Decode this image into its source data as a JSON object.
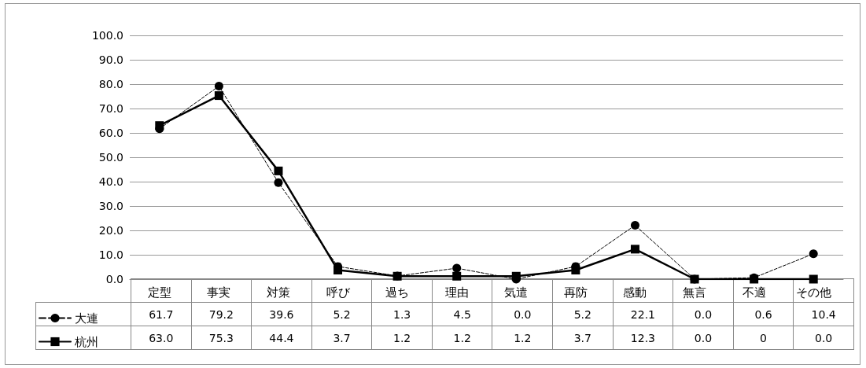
{
  "chart_data": {
    "type": "line",
    "categories": [
      "定型",
      "事実",
      "対策",
      "呼び",
      "過ち",
      "理由",
      "気遣",
      "再防",
      "感動",
      "無言",
      "不適",
      "その他"
    ],
    "series": [
      {
        "name": "大連",
        "color": "#000000",
        "marker": "circle",
        "line_style": "dashed",
        "values": [
          61.7,
          79.2,
          39.6,
          5.2,
          1.3,
          4.5,
          0.0,
          5.2,
          22.1,
          0.0,
          0.6,
          10.4
        ],
        "value_labels": [
          "61.7",
          "79.2",
          "39.6",
          "5.2",
          "1.3",
          "4.5",
          "0.0",
          "5.2",
          "22.1",
          "0.0",
          "0.6",
          "10.4"
        ]
      },
      {
        "name": "杭州",
        "color": "#000000",
        "marker": "square",
        "line_style": "solid",
        "values": [
          63.0,
          75.3,
          44.4,
          3.7,
          1.2,
          1.2,
          1.2,
          3.7,
          12.3,
          0.0,
          0,
          0.0
        ],
        "value_labels": [
          "63.0",
          "75.3",
          "44.4",
          "3.7",
          "1.2",
          "1.2",
          "1.2",
          "3.7",
          "12.3",
          "0.0",
          "0",
          "0.0"
        ]
      }
    ],
    "ylim": [
      0,
      100
    ],
    "yticks": [
      {
        "value": 0,
        "label": "0.0"
      },
      {
        "value": 10,
        "label": "10.0"
      },
      {
        "value": 20,
        "label": "20.0"
      },
      {
        "value": 30,
        "label": "30.0"
      },
      {
        "value": 40,
        "label": "40.0"
      },
      {
        "value": 50,
        "label": "50.0"
      },
      {
        "value": 60,
        "label": "60.0"
      },
      {
        "value": 70,
        "label": "70.0"
      },
      {
        "value": 80,
        "label": "80.0"
      },
      {
        "value": 90,
        "label": "90.0"
      },
      {
        "value": 100,
        "label": "100.0"
      }
    ],
    "grid": "y",
    "legend": "bottom left"
  }
}
